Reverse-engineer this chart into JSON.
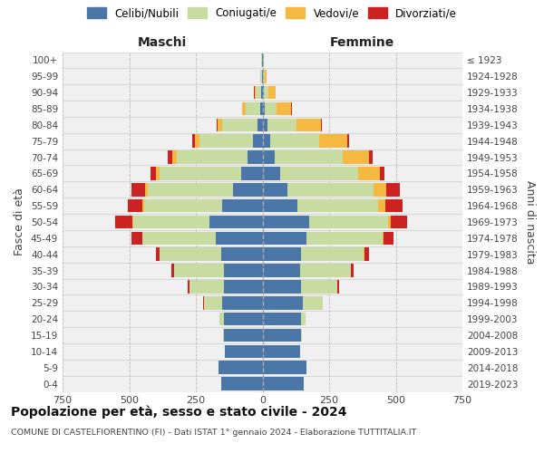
{
  "age_groups": [
    "0-4",
    "5-9",
    "10-14",
    "15-19",
    "20-24",
    "25-29",
    "30-34",
    "35-39",
    "40-44",
    "45-49",
    "50-54",
    "55-59",
    "60-64",
    "65-69",
    "70-74",
    "75-79",
    "80-84",
    "85-89",
    "90-94",
    "95-99",
    "100+"
  ],
  "birth_years": [
    "2019-2023",
    "2014-2018",
    "2009-2013",
    "2004-2008",
    "1999-2003",
    "1994-1998",
    "1989-1993",
    "1984-1988",
    "1979-1983",
    "1974-1978",
    "1969-1973",
    "1964-1968",
    "1959-1963",
    "1954-1958",
    "1949-1953",
    "1944-1948",
    "1939-1943",
    "1934-1938",
    "1929-1933",
    "1924-1928",
    "≤ 1923"
  ],
  "male": {
    "celibi": [
      155,
      165,
      140,
      145,
      145,
      150,
      145,
      145,
      155,
      175,
      200,
      150,
      110,
      80,
      55,
      35,
      20,
      8,
      5,
      2,
      2
    ],
    "coniugati": [
      0,
      0,
      1,
      3,
      15,
      70,
      130,
      185,
      230,
      275,
      285,
      295,
      320,
      305,
      265,
      200,
      130,
      55,
      20,
      5,
      2
    ],
    "vedovi": [
      0,
      0,
      0,
      0,
      0,
      0,
      0,
      1,
      1,
      2,
      3,
      6,
      10,
      14,
      18,
      20,
      20,
      12,
      5,
      2,
      1
    ],
    "divorziati": [
      0,
      0,
      0,
      0,
      0,
      2,
      5,
      10,
      15,
      40,
      65,
      55,
      50,
      20,
      16,
      8,
      3,
      2,
      1,
      0,
      0
    ]
  },
  "female": {
    "nubili": [
      155,
      165,
      140,
      145,
      145,
      150,
      145,
      140,
      145,
      165,
      175,
      130,
      95,
      65,
      45,
      28,
      18,
      8,
      5,
      3,
      2
    ],
    "coniugate": [
      0,
      0,
      1,
      3,
      18,
      75,
      135,
      190,
      235,
      285,
      295,
      305,
      320,
      295,
      255,
      185,
      110,
      45,
      18,
      5,
      2
    ],
    "vedove": [
      0,
      0,
      0,
      0,
      0,
      0,
      1,
      2,
      3,
      5,
      12,
      25,
      50,
      80,
      100,
      105,
      90,
      55,
      25,
      8,
      2
    ],
    "divorziate": [
      0,
      0,
      0,
      0,
      0,
      2,
      5,
      10,
      15,
      35,
      60,
      65,
      50,
      18,
      14,
      8,
      4,
      2,
      1,
      0,
      0
    ]
  },
  "colors": {
    "celibi_nubili": "#4a76a8",
    "coniugati": "#c8dba0",
    "vedovi": "#f5b942",
    "divorziati": "#cc2222"
  },
  "xlim": 750,
  "title": "Popolazione per età, sesso e stato civile - 2024",
  "subtitle": "COMUNE DI CASTELFIORENTINO (FI) - Dati ISTAT 1° gennaio 2024 - Elaborazione TUTTITALIA.IT",
  "xlabel_left": "Maschi",
  "xlabel_right": "Femmine",
  "ylabel": "Fasce di età",
  "ylabel_right": "Anni di nascita",
  "bg_color": "#f0f0f0",
  "grid_color": "#cccccc"
}
